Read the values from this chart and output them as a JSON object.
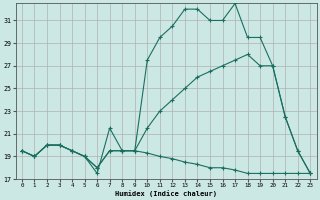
{
  "xlabel": "Humidex (Indice chaleur)",
  "background_color": "#cce8e4",
  "grid_color": "#b0b0b0",
  "line_color": "#1a6e60",
  "xlim": [
    -0.5,
    23.5
  ],
  "ylim": [
    17,
    32.5
  ],
  "yticks": [
    17,
    19,
    21,
    23,
    25,
    27,
    29,
    31
  ],
  "xticks": [
    0,
    1,
    2,
    3,
    4,
    5,
    6,
    7,
    8,
    9,
    10,
    11,
    12,
    13,
    14,
    15,
    16,
    17,
    18,
    19,
    20,
    21,
    22,
    23
  ],
  "series1_x": [
    0,
    1,
    2,
    3,
    4,
    5,
    6,
    7,
    8,
    9,
    10,
    11,
    12,
    13,
    14,
    15,
    16,
    17,
    18,
    19,
    20,
    21,
    22,
    23
  ],
  "series1_y": [
    19.5,
    19.0,
    20.0,
    20.0,
    19.5,
    19.0,
    18.0,
    19.5,
    19.5,
    19.5,
    19.3,
    19.0,
    18.8,
    18.5,
    18.3,
    18.0,
    18.0,
    17.8,
    17.5,
    17.5,
    17.5,
    17.5,
    17.5,
    17.5
  ],
  "series2_x": [
    0,
    1,
    2,
    3,
    4,
    5,
    6,
    7,
    8,
    9,
    10,
    11,
    12,
    13,
    14,
    15,
    16,
    17,
    18,
    19,
    20,
    21,
    22,
    23
  ],
  "series2_y": [
    19.5,
    19.0,
    20.0,
    20.0,
    19.5,
    19.0,
    18.0,
    19.5,
    19.5,
    19.5,
    21.5,
    23.0,
    24.0,
    25.0,
    26.0,
    26.5,
    27.0,
    27.5,
    28.0,
    27.0,
    27.0,
    22.5,
    19.5,
    17.5
  ],
  "series3_x": [
    0,
    1,
    2,
    3,
    4,
    5,
    6,
    7,
    8,
    9,
    10,
    11,
    12,
    13,
    14,
    15,
    16,
    17,
    18,
    19,
    20,
    21,
    22,
    23
  ],
  "series3_y": [
    19.5,
    19.0,
    20.0,
    20.0,
    19.5,
    19.0,
    17.5,
    21.5,
    19.5,
    19.5,
    27.5,
    29.5,
    30.5,
    32.0,
    32.0,
    31.0,
    31.0,
    32.5,
    29.5,
    29.5,
    27.0,
    22.5,
    19.5,
    17.5
  ]
}
